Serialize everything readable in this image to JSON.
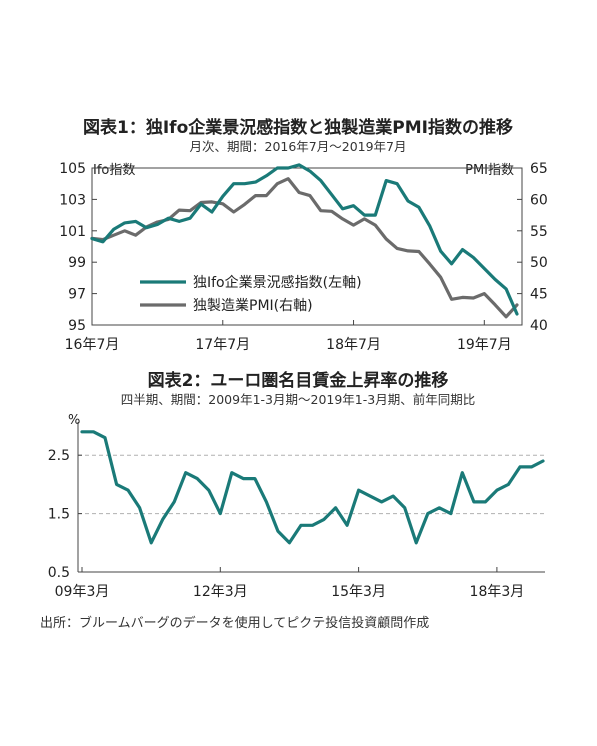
{
  "source": "出所：ブルームバーグのデータを使用してピクテ投信投資顧問作成",
  "colors": {
    "teal": "#1a7a78",
    "gray": "#6b6b6b",
    "grid": "#b0b0b0",
    "axis": "#444444"
  },
  "chart_data": [
    {
      "type": "line",
      "title": "図表1：独Ifo企業景況感指数と独製造業PMI指数の推移",
      "subtitle": "月次、期間：2016年7月～2019年7月",
      "ylabel_left": "Ifo指数",
      "ylabel_right": "PMI指数",
      "ylim_left": [
        95,
        105
      ],
      "ylim_right": [
        40,
        65
      ],
      "yticks_left": [
        "105",
        "103",
        "101",
        "99",
        "97",
        "95"
      ],
      "yticks_right": [
        "65",
        "60",
        "55",
        "50",
        "45",
        "40"
      ],
      "x_tick_labels": [
        "16年7月",
        "17年7月",
        "18年7月",
        "19年7月"
      ],
      "x_tick_index": [
        0,
        12,
        24,
        36
      ],
      "grid": false,
      "legend_position": "bottom-center",
      "series": [
        {
          "name": "独Ifo企業景況感指数(左軸)",
          "axis": "left",
          "color": "#1a7a78",
          "values": [
            100.5,
            100.3,
            101.1,
            101.5,
            101.6,
            101.2,
            101.4,
            101.8,
            101.6,
            101.8,
            102.7,
            102.2,
            103.2,
            104.0,
            104.0,
            104.1,
            104.5,
            105.0,
            105.0,
            105.2,
            104.8,
            104.2,
            103.3,
            102.4,
            102.6,
            102.0,
            102.0,
            104.2,
            104.0,
            102.9,
            102.5,
            101.3,
            99.7,
            98.9,
            99.8,
            99.3,
            98.6,
            97.9,
            97.3,
            95.7
          ]
        },
        {
          "name": "独製造業PMI(右軸)",
          "axis": "right",
          "color": "#6b6b6b",
          "values": [
            53.8,
            53.6,
            54.3,
            55.0,
            54.3,
            55.6,
            56.4,
            56.8,
            58.3,
            58.2,
            59.5,
            59.6,
            59.3,
            58.0,
            59.2,
            60.6,
            60.6,
            62.5,
            63.3,
            61.1,
            60.6,
            58.2,
            58.1,
            56.9,
            55.9,
            56.9,
            55.9,
            53.7,
            52.2,
            51.8,
            51.7,
            49.7,
            47.6,
            44.1,
            44.4,
            44.3,
            45.0,
            43.2,
            41.3,
            43.2
          ]
        }
      ]
    },
    {
      "type": "line",
      "title": "図表2：ユーロ圏名目賃金上昇率の推移",
      "subtitle": "四半期、期間：2009年1-3月期～2019年1-3月期、前年同期比",
      "ylabel": "%",
      "ylim": [
        0.5,
        3.0
      ],
      "yticks": [
        "2.5",
        "1.5",
        "0.5"
      ],
      "gridlines_at": [
        2.5,
        1.5
      ],
      "x_tick_labels": [
        "09年3月",
        "12年3月",
        "15年3月",
        "18年3月"
      ],
      "x_tick_index": [
        0,
        12,
        24,
        36
      ],
      "series": [
        {
          "name": "",
          "color": "#1a7a78",
          "values": [
            2.9,
            2.9,
            2.8,
            2.0,
            1.9,
            1.6,
            1.0,
            1.4,
            1.7,
            2.2,
            2.1,
            1.9,
            1.5,
            2.2,
            2.1,
            2.1,
            1.7,
            1.2,
            1.0,
            1.3,
            1.3,
            1.4,
            1.6,
            1.3,
            1.9,
            1.8,
            1.7,
            1.8,
            1.6,
            1.0,
            1.5,
            1.6,
            1.5,
            2.2,
            1.7,
            1.7,
            1.9,
            2.0,
            2.3,
            2.3,
            2.4
          ]
        }
      ]
    }
  ]
}
